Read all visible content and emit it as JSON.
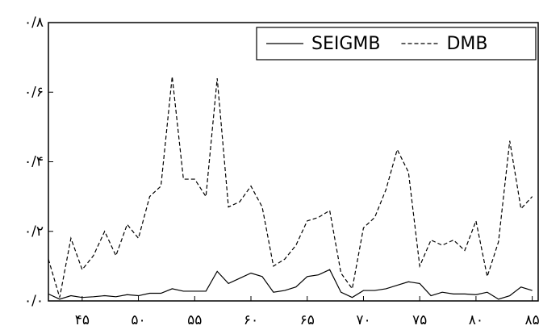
{
  "chart_data": {
    "type": "line",
    "x": [
      42,
      43,
      44,
      45,
      46,
      47,
      48,
      49,
      50,
      51,
      52,
      53,
      54,
      55,
      56,
      57,
      58,
      59,
      60,
      61,
      62,
      63,
      64,
      65,
      66,
      67,
      68,
      69,
      70,
      71,
      72,
      73,
      74,
      75,
      76,
      77,
      78,
      79,
      80,
      81,
      82,
      83,
      84,
      85
    ],
    "series": [
      {
        "name": "SEIGMB",
        "color": "#000000",
        "dash": false,
        "values": [
          0.02,
          0.005,
          0.015,
          0.01,
          0.012,
          0.015,
          0.012,
          0.018,
          0.015,
          0.022,
          0.022,
          0.035,
          0.028,
          0.028,
          0.028,
          0.085,
          0.05,
          0.065,
          0.08,
          0.07,
          0.025,
          0.03,
          0.04,
          0.07,
          0.075,
          0.09,
          0.025,
          0.01,
          0.03,
          0.03,
          0.035,
          0.045,
          0.055,
          0.05,
          0.015,
          0.025,
          0.02,
          0.02,
          0.018,
          0.025,
          0.005,
          0.015,
          0.04,
          0.03
        ]
      },
      {
        "name": "DMB",
        "color": "#000000",
        "dash": true,
        "values": [
          0.12,
          0.01,
          0.18,
          0.09,
          0.13,
          0.2,
          0.13,
          0.22,
          0.18,
          0.3,
          0.33,
          0.645,
          0.35,
          0.35,
          0.3,
          0.64,
          0.27,
          0.285,
          0.33,
          0.27,
          0.1,
          0.12,
          0.16,
          0.23,
          0.24,
          0.26,
          0.08,
          0.035,
          0.21,
          0.24,
          0.32,
          0.435,
          0.37,
          0.1,
          0.175,
          0.16,
          0.175,
          0.145,
          0.23,
          0.07,
          0.17,
          0.46,
          0.265,
          0.3
        ]
      }
    ],
    "xlim": [
      42,
      85.6
    ],
    "ylim": [
      0,
      0.8
    ],
    "xticks": [
      {
        "value": 45,
        "label": "۴۵"
      },
      {
        "value": 50,
        "label": "۵۰"
      },
      {
        "value": 55,
        "label": "۵۵"
      },
      {
        "value": 60,
        "label": "۶۰"
      },
      {
        "value": 65,
        "label": "۶۵"
      },
      {
        "value": 70,
        "label": "۷۰"
      },
      {
        "value": 75,
        "label": "۷۵"
      },
      {
        "value": 80,
        "label": "۸۰"
      },
      {
        "value": 85,
        "label": "۸۵"
      }
    ],
    "yticks": [
      {
        "value": 0,
        "label": "۰/۰"
      },
      {
        "value": 0.2,
        "label": "۰/۲"
      },
      {
        "value": 0.4,
        "label": "۰/۴"
      },
      {
        "value": 0.6,
        "label": "۰/۶"
      },
      {
        "value": 0.8,
        "label": "۰/۸"
      }
    ],
    "legend": "top-right"
  }
}
